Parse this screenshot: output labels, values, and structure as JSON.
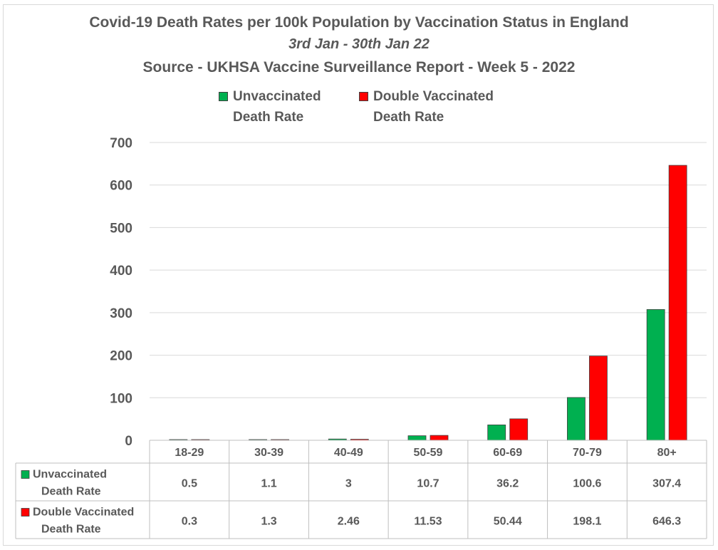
{
  "chart_data": {
    "type": "bar",
    "title": "Covid-19 Death Rates per 100k Population by Vaccination Status in England",
    "subtitle": "3rd Jan - 30th Jan 22",
    "source": "Source - UKHSA Vaccine Surveillance Report - Week 5 - 2022",
    "categories": [
      "18-29",
      "30-39",
      "40-49",
      "50-59",
      "60-69",
      "70-79",
      "80+"
    ],
    "series": [
      {
        "name": "Unvaccinated\nDeath Rate",
        "color": "#00b050",
        "values": [
          0.5,
          1.1,
          3,
          10.7,
          36.2,
          100.6,
          307.4
        ],
        "labels": [
          "0.5",
          "1.1",
          "3",
          "10.7",
          "36.2",
          "100.6",
          "307.4"
        ]
      },
      {
        "name": "Double Vaccinated\nDeath Rate",
        "color": "#ff0000",
        "values": [
          0.3,
          1.3,
          2.46,
          11.53,
          50.44,
          198.1,
          646.3
        ],
        "labels": [
          "0.3",
          "1.3",
          "2.46",
          "11.53",
          "50.44",
          "198.1",
          "646.3"
        ]
      }
    ],
    "yticks": [
      "0",
      "100",
      "200",
      "300",
      "400",
      "500",
      "600",
      "700"
    ],
    "ylim": [
      0,
      700
    ],
    "grid": true,
    "legend": "top",
    "data_table": true
  }
}
